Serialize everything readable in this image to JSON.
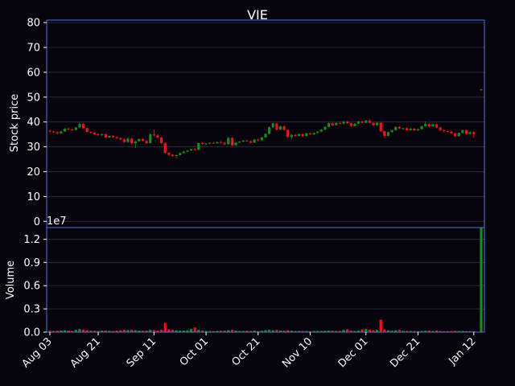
{
  "chart_data": {
    "type": "candlestick",
    "title": "VIE",
    "price_panel": {
      "ylabel": "Stock price",
      "ylim": [
        -2.5,
        81
      ],
      "yticks": [
        0,
        10,
        20,
        30,
        40,
        50,
        60,
        70,
        80
      ]
    },
    "volume_panel": {
      "ylabel": "Volume",
      "offset_label": "1e7",
      "ylim": [
        0,
        1.35
      ],
      "yticks": [
        0.0,
        0.3,
        0.6,
        0.9,
        1.2
      ],
      "ytick_labels": [
        "0.0",
        "0.3",
        "0.6",
        "0.9",
        "1.2"
      ]
    },
    "xticks": [
      "Aug 03",
      "Aug 21",
      "Sep 11",
      "Oct 01",
      "Oct 21",
      "Nov 10",
      "Dec 01",
      "Dec 21",
      "Jan 12"
    ],
    "xtick_index": [
      0,
      13,
      28,
      42,
      56,
      70,
      85,
      99,
      114
    ],
    "colors": {
      "up": "#1a8a1a",
      "down": "#e8141e",
      "grid": "#2a2838",
      "frame": "#4a78d8",
      "background": "#07040d"
    },
    "candles": [
      [
        36.5,
        36.9,
        35.8,
        36.2,
        0.02
      ],
      [
        36.2,
        36.6,
        35.5,
        35.9,
        0.015
      ],
      [
        35.9,
        36.3,
        35.0,
        35.4,
        0.018
      ],
      [
        35.4,
        36.5,
        35.2,
        36.2,
        0.022
      ],
      [
        36.2,
        37.6,
        36.0,
        37.3,
        0.025
      ],
      [
        37.3,
        37.8,
        36.8,
        37.0,
        0.02
      ],
      [
        37.0,
        37.5,
        36.4,
        36.8,
        0.015
      ],
      [
        36.8,
        38.0,
        36.6,
        37.8,
        0.03
      ],
      [
        37.8,
        39.8,
        37.5,
        39.2,
        0.04
      ],
      [
        39.2,
        39.6,
        37.2,
        37.5,
        0.035
      ],
      [
        37.5,
        38.0,
        35.8,
        36.0,
        0.025
      ],
      [
        36.0,
        36.4,
        35.4,
        35.7,
        0.02
      ],
      [
        35.7,
        36.1,
        34.8,
        35.0,
        0.018
      ],
      [
        35.0,
        35.6,
        34.4,
        34.8,
        0.015
      ],
      [
        34.8,
        35.3,
        34.2,
        35.1,
        0.02
      ],
      [
        35.1,
        35.4,
        33.5,
        33.8,
        0.022
      ],
      [
        33.8,
        34.6,
        33.6,
        34.4,
        0.018
      ],
      [
        34.4,
        34.8,
        33.6,
        33.9,
        0.015
      ],
      [
        33.9,
        34.2,
        33.2,
        33.5,
        0.02
      ],
      [
        33.5,
        33.9,
        32.6,
        33.0,
        0.025
      ],
      [
        33.0,
        33.4,
        31.5,
        31.9,
        0.03
      ],
      [
        31.9,
        33.8,
        31.6,
        33.3,
        0.028
      ],
      [
        33.3,
        33.7,
        31.0,
        31.4,
        0.03
      ],
      [
        31.4,
        32.6,
        29.6,
        32.2,
        0.025
      ],
      [
        32.2,
        33.4,
        32.0,
        33.1,
        0.02
      ],
      [
        33.1,
        33.5,
        32.1,
        32.4,
        0.018
      ],
      [
        32.4,
        32.8,
        31.2,
        31.5,
        0.02
      ],
      [
        31.5,
        35.5,
        31.3,
        35.0,
        0.03
      ],
      [
        35.0,
        37.0,
        34.2,
        34.6,
        0.025
      ],
      [
        34.6,
        35.3,
        33.4,
        33.8,
        0.02
      ],
      [
        33.8,
        34.0,
        31.2,
        31.5,
        0.03
      ],
      [
        31.5,
        31.8,
        27.2,
        27.6,
        0.12
      ],
      [
        27.6,
        27.9,
        26.4,
        26.8,
        0.035
      ],
      [
        26.8,
        27.1,
        25.8,
        26.3,
        0.03
      ],
      [
        26.3,
        27.0,
        25.3,
        26.7,
        0.025
      ],
      [
        26.7,
        27.8,
        26.5,
        27.5,
        0.02
      ],
      [
        27.5,
        28.4,
        27.3,
        28.1,
        0.02
      ],
      [
        28.1,
        28.7,
        27.8,
        28.5,
        0.025
      ],
      [
        28.5,
        29.3,
        28.3,
        29.1,
        0.04
      ],
      [
        29.1,
        29.5,
        28.4,
        28.8,
        0.06
      ],
      [
        28.8,
        31.8,
        28.6,
        31.5,
        0.03
      ],
      [
        31.5,
        31.9,
        30.8,
        31.2,
        0.02
      ],
      [
        31.2,
        31.6,
        30.7,
        31.3,
        0.015
      ],
      [
        31.3,
        31.8,
        31.0,
        31.6,
        0.015
      ],
      [
        31.6,
        32.0,
        31.1,
        31.4,
        0.012
      ],
      [
        31.4,
        32.2,
        31.2,
        31.9,
        0.015
      ],
      [
        31.9,
        32.3,
        31.3,
        31.6,
        0.018
      ],
      [
        31.6,
        31.9,
        30.6,
        31.0,
        0.02
      ],
      [
        31.0,
        34.0,
        30.8,
        33.6,
        0.025
      ],
      [
        33.6,
        33.9,
        30.2,
        30.6,
        0.03
      ],
      [
        30.6,
        32.0,
        30.4,
        31.7,
        0.02
      ],
      [
        31.7,
        32.3,
        31.5,
        32.1,
        0.015
      ],
      [
        32.1,
        32.8,
        31.8,
        32.5,
        0.015
      ],
      [
        32.5,
        33.0,
        32.0,
        32.2,
        0.018
      ],
      [
        32.2,
        32.6,
        31.4,
        31.7,
        0.015
      ],
      [
        31.7,
        33.2,
        31.5,
        32.9,
        0.02
      ],
      [
        32.9,
        33.4,
        32.2,
        32.6,
        0.015
      ],
      [
        32.6,
        34.0,
        32.4,
        33.8,
        0.018
      ],
      [
        33.8,
        35.5,
        33.6,
        35.2,
        0.025
      ],
      [
        35.2,
        38.2,
        35.0,
        37.9,
        0.03
      ],
      [
        37.9,
        39.8,
        37.6,
        39.4,
        0.025
      ],
      [
        39.4,
        39.6,
        36.5,
        36.9,
        0.03
      ],
      [
        36.9,
        38.6,
        36.7,
        38.2,
        0.02
      ],
      [
        38.2,
        38.6,
        36.4,
        36.8,
        0.02
      ],
      [
        36.8,
        37.0,
        33.5,
        33.9,
        0.025
      ],
      [
        33.9,
        35.2,
        33.0,
        34.8,
        0.018
      ],
      [
        34.8,
        35.2,
        34.0,
        34.4,
        0.015
      ],
      [
        34.4,
        35.4,
        34.2,
        35.1,
        0.015
      ],
      [
        35.1,
        35.4,
        33.9,
        34.3,
        0.015
      ],
      [
        34.3,
        35.8,
        34.1,
        35.4,
        0.015
      ],
      [
        35.4,
        35.8,
        34.7,
        35.0,
        0.012
      ],
      [
        35.0,
        35.8,
        34.8,
        35.6,
        0.015
      ],
      [
        35.6,
        36.4,
        35.2,
        36.1,
        0.015
      ],
      [
        36.1,
        37.2,
        35.9,
        36.9,
        0.015
      ],
      [
        36.9,
        38.3,
        36.7,
        38.0,
        0.018
      ],
      [
        38.0,
        39.8,
        37.8,
        39.5,
        0.02
      ],
      [
        39.5,
        39.8,
        38.3,
        38.7,
        0.018
      ],
      [
        38.7,
        39.9,
        38.5,
        39.6,
        0.015
      ],
      [
        39.6,
        40.2,
        39.0,
        39.4,
        0.015
      ],
      [
        39.4,
        40.4,
        38.8,
        40.1,
        0.03
      ],
      [
        40.1,
        40.5,
        39.2,
        39.5,
        0.035
      ],
      [
        39.5,
        39.8,
        38.0,
        38.4,
        0.02
      ],
      [
        38.4,
        39.6,
        38.2,
        39.3,
        0.015
      ],
      [
        39.3,
        40.5,
        39.1,
        40.2,
        0.02
      ],
      [
        40.2,
        40.6,
        39.4,
        39.7,
        0.035
      ],
      [
        39.7,
        40.9,
        39.5,
        40.6,
        0.04
      ],
      [
        40.6,
        41.0,
        39.3,
        39.7,
        0.03
      ],
      [
        39.7,
        40.0,
        38.2,
        38.7,
        0.025
      ],
      [
        38.7,
        40.0,
        38.4,
        39.7,
        0.03
      ],
      [
        39.7,
        39.9,
        35.8,
        36.3,
        0.16
      ],
      [
        36.3,
        36.6,
        33.4,
        34.4,
        0.035
      ],
      [
        34.4,
        36.2,
        34.2,
        35.9,
        0.025
      ],
      [
        35.9,
        37.0,
        35.7,
        36.7,
        0.02
      ],
      [
        36.7,
        38.3,
        36.5,
        38.0,
        0.025
      ],
      [
        38.0,
        38.3,
        37.1,
        37.4,
        0.03
      ],
      [
        37.4,
        37.8,
        36.9,
        37.5,
        0.018
      ],
      [
        37.5,
        37.9,
        36.4,
        36.7,
        0.015
      ],
      [
        36.7,
        37.6,
        36.5,
        37.3,
        0.015
      ],
      [
        37.3,
        37.6,
        36.3,
        36.6,
        0.015
      ],
      [
        36.6,
        37.4,
        36.4,
        37.1,
        0.012
      ],
      [
        37.1,
        38.6,
        36.9,
        38.3,
        0.015
      ],
      [
        38.3,
        40.2,
        38.1,
        39.2,
        0.018
      ],
      [
        39.2,
        39.6,
        37.8,
        38.2,
        0.02
      ],
      [
        38.2,
        39.5,
        38.0,
        39.1,
        0.015
      ],
      [
        39.1,
        39.4,
        37.5,
        37.8,
        0.02
      ],
      [
        37.8,
        38.1,
        36.2,
        36.7,
        0.015
      ],
      [
        36.7,
        37.0,
        35.8,
        36.3,
        0.012
      ],
      [
        36.3,
        36.8,
        35.6,
        36.1,
        0.012
      ],
      [
        36.1,
        36.5,
        35.1,
        35.4,
        0.015
      ],
      [
        35.4,
        35.8,
        33.8,
        34.3,
        0.018
      ],
      [
        34.3,
        35.8,
        34.1,
        35.6,
        0.015
      ],
      [
        35.6,
        37.0,
        35.4,
        36.7,
        0.015
      ],
      [
        36.7,
        37.0,
        34.8,
        35.2,
        0.012
      ],
      [
        35.2,
        36.3,
        35.0,
        35.9,
        0.012
      ],
      [
        35.9,
        36.2,
        33.6,
        35.1,
        0.012
      ],
      [
        null,
        null,
        null,
        null,
        0
      ],
      [
        52.9,
        53.3,
        52.6,
        53.1,
        1.35
      ]
    ]
  }
}
